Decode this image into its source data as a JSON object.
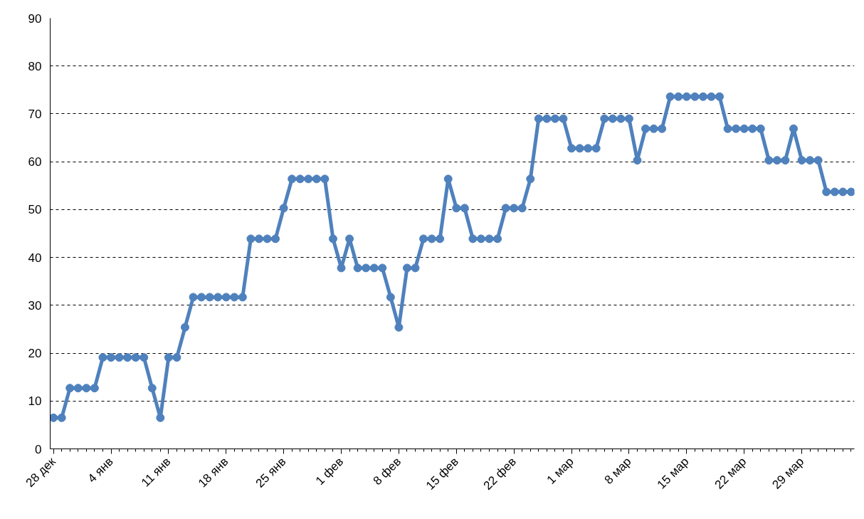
{
  "chart_data": {
    "type": "line",
    "marker": "circle",
    "line_style": "solid",
    "grid": "y",
    "categories": [
      "28 дек",
      null,
      null,
      null,
      null,
      null,
      null,
      "4 янв",
      null,
      null,
      null,
      null,
      null,
      null,
      "11 янв",
      null,
      null,
      null,
      null,
      null,
      null,
      "18 янв",
      null,
      null,
      null,
      null,
      null,
      null,
      "25 янв",
      null,
      null,
      null,
      null,
      null,
      null,
      "1 фев",
      null,
      null,
      null,
      null,
      null,
      null,
      "8 фев",
      null,
      null,
      null,
      null,
      null,
      null,
      "15 фев",
      null,
      null,
      null,
      null,
      null,
      null,
      "22 фев",
      null,
      null,
      null,
      null,
      null,
      null,
      "1 мар",
      null,
      null,
      null,
      null,
      null,
      null,
      "8 мар",
      null,
      null,
      null,
      null,
      null,
      null,
      "15 мар",
      null,
      null,
      null,
      null,
      null,
      null,
      "22 мар",
      null,
      null,
      null,
      null,
      null,
      null,
      "29 мар",
      null,
      null,
      null,
      null,
      null,
      null
    ],
    "series": [
      {
        "color": "#4f81bd",
        "values": [
          6.5,
          6.5,
          12.7,
          12.7,
          12.7,
          12.7,
          19.1,
          19.1,
          19.1,
          19.1,
          19.1,
          19.1,
          12.7,
          6.5,
          19.1,
          19.1,
          25.4,
          31.7,
          31.7,
          31.7,
          31.7,
          31.7,
          31.7,
          31.7,
          43.9,
          43.9,
          43.9,
          43.9,
          50.3,
          56.4,
          56.4,
          56.4,
          56.4,
          56.4,
          43.9,
          37.8,
          43.9,
          37.8,
          37.8,
          37.8,
          37.8,
          31.7,
          25.4,
          37.8,
          37.8,
          43.9,
          43.9,
          43.9,
          56.4,
          50.3,
          50.3,
          43.9,
          43.9,
          43.9,
          43.9,
          50.3,
          50.3,
          50.3,
          56.4,
          69.0,
          69.0,
          69.0,
          69.0,
          62.8,
          62.8,
          62.8,
          62.8,
          69.0,
          69.0,
          69.0,
          69.0,
          60.3,
          66.9,
          66.9,
          66.9,
          73.6,
          73.6,
          73.6,
          73.6,
          73.6,
          73.6,
          73.6,
          66.9,
          66.9,
          66.9,
          66.9,
          66.9,
          60.3,
          60.3,
          60.3,
          66.9,
          60.3,
          60.3,
          60.3,
          53.7,
          53.7,
          53.7,
          53.7
        ]
      }
    ],
    "ylim": [
      0,
      90
    ],
    "yticks": [
      0,
      10,
      20,
      30,
      40,
      50,
      60,
      70,
      80,
      90
    ]
  }
}
